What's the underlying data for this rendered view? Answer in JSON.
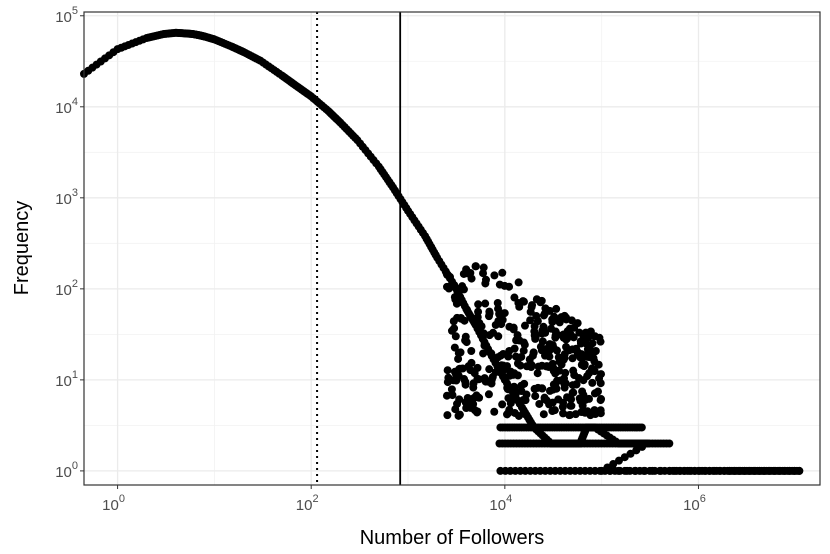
{
  "chart_data": {
    "type": "scatter",
    "xlabel": "Number of Followers",
    "ylabel": "Frequency",
    "x_scale": "log10",
    "y_scale": "log10",
    "xlim": [
      0.45,
      18000000
    ],
    "ylim": [
      0.7,
      110000
    ],
    "x_ticks": [
      {
        "value": 1,
        "base": "10",
        "exp": "0"
      },
      {
        "value": 100,
        "base": "10",
        "exp": "2"
      },
      {
        "value": 10000,
        "base": "10",
        "exp": "4"
      },
      {
        "value": 1000000,
        "base": "10",
        "exp": "6"
      }
    ],
    "y_ticks": [
      {
        "value": 1,
        "base": "10",
        "exp": "0"
      },
      {
        "value": 10,
        "base": "10",
        "exp": "1"
      },
      {
        "value": 100,
        "base": "10",
        "exp": "2"
      },
      {
        "value": 1000,
        "base": "10",
        "exp": "3"
      },
      {
        "value": 10000,
        "base": "10",
        "exp": "4"
      },
      {
        "value": 100000,
        "base": "10",
        "exp": "5"
      }
    ],
    "grid": true,
    "reference_lines": [
      {
        "x": 115,
        "style": "dotted"
      },
      {
        "x": 830,
        "style": "solid"
      }
    ],
    "points": [
      [
        0.45,
        23000
      ],
      [
        1,
        43000
      ],
      [
        2,
        57000
      ],
      [
        3,
        63000
      ],
      [
        4,
        65000
      ],
      [
        5,
        64000
      ],
      [
        6,
        63000
      ],
      [
        7,
        61000
      ],
      [
        8,
        59000
      ],
      [
        10,
        55000
      ],
      [
        15,
        46000
      ],
      [
        20,
        40000
      ],
      [
        30,
        32000
      ],
      [
        50,
        22000
      ],
      [
        70,
        17000
      ],
      [
        100,
        13000
      ],
      [
        150,
        9000
      ],
      [
        200,
        6700
      ],
      [
        300,
        4300
      ],
      [
        500,
        2200
      ],
      [
        700,
        1300
      ],
      [
        1000,
        720
      ],
      [
        1500,
        380
      ],
      [
        2000,
        220
      ],
      [
        3000,
        110
      ],
      [
        4000,
        60
      ],
      [
        5000,
        40
      ],
      [
        7000,
        20
      ],
      [
        10000,
        10
      ],
      [
        15000,
        5
      ],
      [
        20000,
        3
      ],
      [
        30000,
        2
      ],
      [
        40000,
        2
      ],
      [
        60000,
        2
      ],
      [
        70000,
        3
      ],
      [
        85000,
        3
      ],
      [
        150000,
        2
      ],
      [
        200000,
        2
      ],
      [
        250000,
        2
      ],
      [
        300000,
        2
      ],
      [
        100000,
        1
      ],
      [
        500000,
        1
      ],
      [
        1000000,
        1
      ],
      [
        2000000,
        1
      ],
      [
        3000000,
        1
      ],
      [
        4500000,
        1
      ],
      [
        7000000,
        1
      ],
      [
        11000000,
        1
      ]
    ]
  }
}
